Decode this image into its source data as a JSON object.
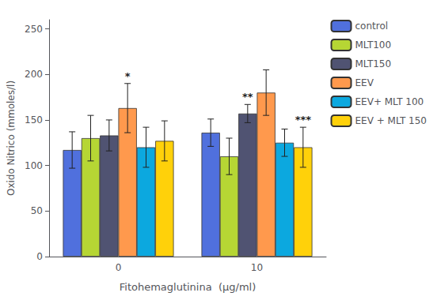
{
  "chart_data": {
    "type": "bar",
    "xlabel": "Fitohemaglutinina  (µg/ml)",
    "ylabel": "Oxido Nitrico (mmoles/l)",
    "categories": [
      "0",
      "10"
    ],
    "series": [
      {
        "name": "control",
        "values": [
          117,
          136
        ],
        "errors": [
          20,
          15
        ]
      },
      {
        "name": "MLT100",
        "values": [
          130,
          110
        ],
        "errors": [
          25,
          20
        ]
      },
      {
        "name": "MLT150",
        "values": [
          133,
          157
        ],
        "errors": [
          17,
          10
        ],
        "annotations": [
          null,
          "**"
        ]
      },
      {
        "name": "EEV",
        "values": [
          163,
          180
        ],
        "errors": [
          27,
          25
        ],
        "annotations": [
          "*",
          null
        ]
      },
      {
        "name": "EEV+ MLT 100",
        "values": [
          120,
          125
        ],
        "errors": [
          22,
          15
        ]
      },
      {
        "name": "EEV + MLT 150",
        "values": [
          127,
          120
        ],
        "errors": [
          22,
          22
        ],
        "annotations": [
          null,
          "***"
        ]
      }
    ],
    "ylim": [
      0,
      260
    ],
    "yticks": [
      0,
      50,
      100,
      150,
      200,
      250
    ],
    "grid": false,
    "legend": "right"
  }
}
